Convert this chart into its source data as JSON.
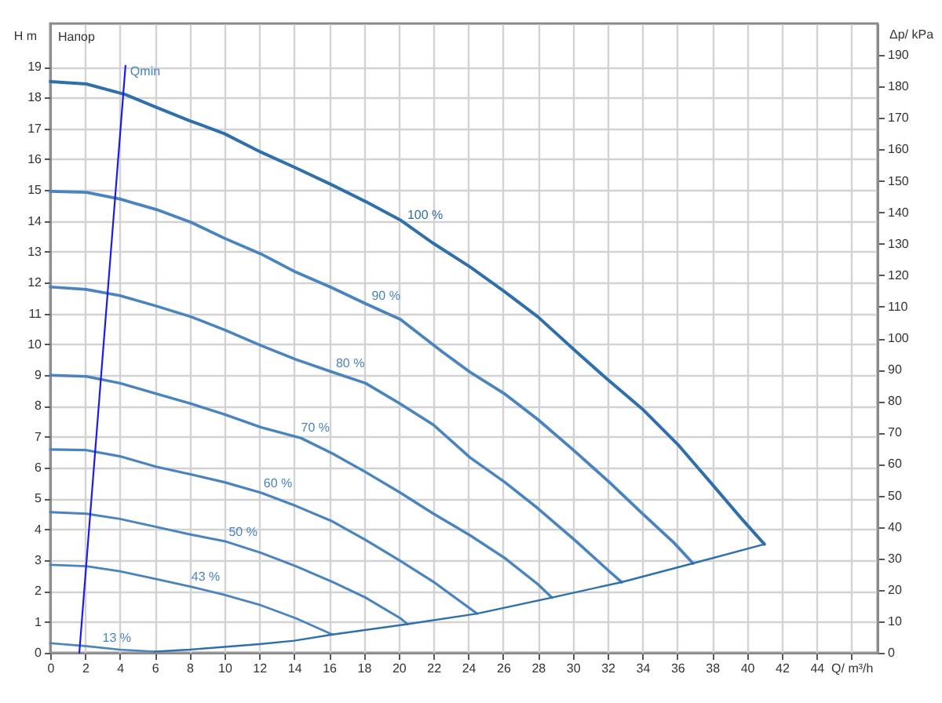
{
  "chart_data": {
    "type": "line",
    "xlabel": "Q/ m³/h",
    "ylabel": "H m",
    "y2label": "Δp/ kPa",
    "annotations": [
      "Напор",
      {
        "text": "Qmin",
        "x": 4.32,
        "y": 19.03
      }
    ],
    "xlim": [
      0,
      47.5
    ],
    "xticks": [
      0,
      2,
      4,
      6,
      8,
      10,
      12,
      14,
      16,
      18,
      20,
      22,
      24,
      26,
      28,
      30,
      32,
      34,
      36,
      38,
      40,
      42,
      44,
      {
        "value": 46,
        "label": null
      }
    ],
    "ylim": [
      0,
      20.4
    ],
    "yticks": [
      0,
      1,
      2,
      3,
      4,
      5,
      6,
      7,
      8,
      9,
      10,
      11,
      12,
      13,
      14,
      15,
      16,
      17,
      18,
      19
    ],
    "y2lim": [
      0,
      200
    ],
    "y2ticks": [
      0,
      10,
      20,
      30,
      40,
      50,
      60,
      70,
      80,
      90,
      100,
      110,
      120,
      130,
      140,
      150,
      160,
      170,
      180,
      190
    ],
    "grid": true,
    "series": [
      {
        "name": "100 %",
        "color": "#2f6faa",
        "x": [
          0,
          2.07,
          4.3,
          6.1,
          8,
          10,
          12.1,
          14.1,
          16.1,
          18.1,
          20.1,
          22,
          24.1,
          26,
          28,
          30.2,
          31.9,
          34,
          36.1,
          37.9,
          39.7,
          41
        ],
        "values": [
          18.52,
          18.44,
          18.1,
          17.68,
          17.25,
          16.83,
          16.23,
          15.72,
          15.19,
          14.63,
          14.03,
          13.27,
          12.51,
          11.74,
          10.89,
          9.76,
          8.91,
          7.9,
          6.71,
          5.53,
          4.34,
          3.52
        ]
      },
      {
        "name": "90 %",
        "color": "#4a84bf",
        "x": [
          0,
          2.07,
          4,
          6.1,
          8.1,
          10,
          12.1,
          14.1,
          16.2,
          18.1,
          20.1,
          22.5,
          24.1,
          26.1,
          28,
          30.1,
          32.1,
          34,
          35.8,
          36.9
        ],
        "values": [
          14.96,
          14.93,
          14.71,
          14.37,
          13.95,
          13.44,
          12.93,
          12.34,
          11.83,
          11.32,
          10.81,
          9.76,
          9.1,
          8.39,
          7.56,
          6.54,
          5.53,
          4.51,
          3.57,
          2.9
        ]
      },
      {
        "name": "80 %",
        "color": "#4a84bf",
        "x": [
          0,
          2.07,
          4,
          6.1,
          8.1,
          10,
          12.1,
          14.1,
          16.3,
          18.1,
          20.1,
          22,
          24.1,
          26.1,
          28,
          30.1,
          32.1,
          32.8
        ],
        "values": [
          11.86,
          11.78,
          11.58,
          11.24,
          10.89,
          10.47,
          9.96,
          9.51,
          9.08,
          8.74,
          8.07,
          7.39,
          6.33,
          5.53,
          4.68,
          3.66,
          2.64,
          2.29
        ]
      },
      {
        "name": "70 %",
        "color": "#4a84bf",
        "x": [
          0,
          2.07,
          4,
          6.1,
          8.1,
          10,
          12.1,
          14.4,
          16.2,
          18.1,
          20.1,
          22,
          24.1,
          26.1,
          28,
          28.8
        ],
        "values": [
          9,
          8.96,
          8.74,
          8.4,
          8.07,
          7.73,
          7.31,
          6.96,
          6.46,
          5.86,
          5.19,
          4.51,
          3.81,
          3.07,
          2.22,
          1.79
        ]
      },
      {
        "name": "60 %",
        "color": "#4a84bf",
        "x": [
          0,
          2.07,
          4,
          6.1,
          8.1,
          10,
          12.1,
          14.1,
          16.2,
          18.1,
          20.1,
          22,
          24.5
        ],
        "values": [
          6.59,
          6.57,
          6.37,
          6.03,
          5.78,
          5.53,
          5.19,
          4.76,
          4.26,
          3.66,
          2.98,
          2.3,
          1.27
        ]
      },
      {
        "name": "50 %",
        "color": "#4a84bf",
        "x": [
          0,
          2.07,
          4,
          6.1,
          8.1,
          10,
          12.1,
          14.1,
          16.2,
          18.1,
          20.1,
          20.5
        ],
        "values": [
          4.56,
          4.51,
          4.34,
          4.08,
          3.83,
          3.62,
          3.24,
          2.81,
          2.3,
          1.79,
          1.12,
          0.93
        ]
      },
      {
        "name": "43 %",
        "color": "#4a84bf",
        "x": [
          0,
          2.07,
          4,
          6.1,
          8.1,
          10,
          12.1,
          14.1,
          16.2
        ],
        "values": [
          2.85,
          2.81,
          2.64,
          2.39,
          2.14,
          1.88,
          1.54,
          1.12,
          0.59
        ]
      },
      {
        "name": "13 %",
        "color": "#4a84bf",
        "x": [
          0,
          2,
          4,
          6
        ],
        "values": [
          0.31,
          0.22,
          0.1,
          0.04
        ]
      },
      {
        "color": "#2f6faa",
        "x": [
          6,
          8,
          10,
          12,
          14,
          16.2,
          20.5,
          24.5,
          28.8,
          32.8,
          36.9,
          41
        ],
        "values": [
          0.04,
          0.1,
          0.19,
          0.28,
          0.39,
          0.59,
          0.93,
          1.27,
          1.79,
          2.29,
          2.9,
          3.52
        ]
      },
      {
        "color": "#1c1ce8",
        "x": [
          1.67,
          4.32
        ],
        "values": [
          0,
          19.03
        ]
      }
    ]
  }
}
